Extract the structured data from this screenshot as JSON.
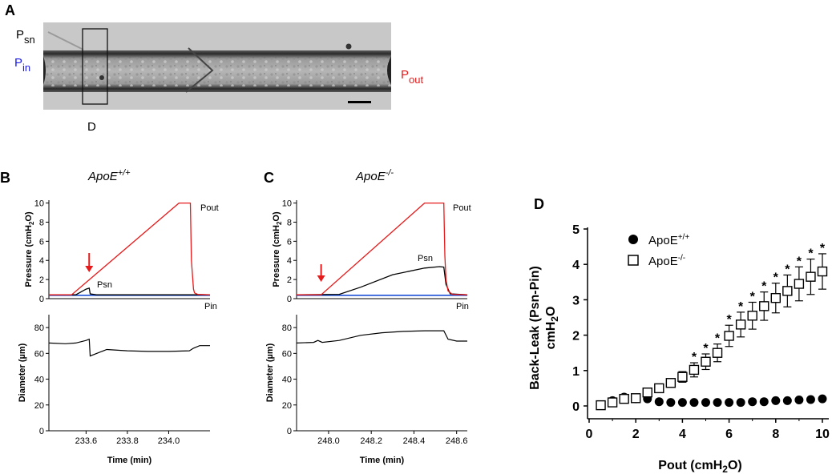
{
  "panel_labels": {
    "a": "A",
    "b": "B",
    "c": "C",
    "d": "D"
  },
  "micrograph": {
    "psn_main": "P",
    "psn_sub": "sn",
    "pin_main": "P",
    "pin_sub": "in",
    "pout_main": "P",
    "pout_sub": "out",
    "d_label": "D",
    "colors": {
      "psn": "#000000",
      "pin": "#1a1ae6",
      "pout": "#e61a1a"
    }
  },
  "traces": {
    "pressure_ylabel": "Pressure (cmH",
    "pressure_ylabel_sub": "2",
    "pressure_ylabel_end": "O)",
    "diameter_ylabel": "Diameter (µm)",
    "time_xlabel": "Time  (min)",
    "legend_pout": "Pout",
    "legend_psn": "Psn",
    "legend_pin": "Pin",
    "colors": {
      "pout": "#e61a1a",
      "psn": "#000000",
      "pin": "#1a4fd6",
      "arrow": "#e61a1a"
    }
  },
  "chart_data": [
    {
      "id": "B",
      "type": "line",
      "title_main": "ApoE",
      "title_sup": "+/+",
      "xlabel": "Time  (min)",
      "xlim": [
        233.42,
        234.2
      ],
      "xticks": [
        "233.6",
        "233.8",
        "234.0"
      ],
      "xtick_values": [
        233.6,
        233.8,
        234.0
      ],
      "pressure": {
        "ylim": [
          0,
          10.3
        ],
        "yticks": [
          "0",
          "2",
          "4",
          "6",
          "8",
          "10"
        ],
        "ytick_values": [
          0,
          2,
          4,
          6,
          8,
          10
        ],
        "series": [
          {
            "name": "Pout",
            "x": [
              233.42,
              233.53,
              234.05,
              234.105,
              234.11,
              234.115,
              234.12,
              234.125,
              234.14,
              234.2
            ],
            "y": [
              0.4,
              0.4,
              10.0,
              10.0,
              4.0,
              2.5,
              1.0,
              0.6,
              0.45,
              0.4
            ]
          },
          {
            "name": "Psn",
            "x": [
              233.42,
              233.55,
              233.6,
              233.615,
              233.62,
              233.65,
              234.2
            ],
            "y": [
              0.4,
              0.4,
              1.0,
              1.1,
              0.5,
              0.4,
              0.4
            ]
          },
          {
            "name": "Pin",
            "x": [
              233.42,
              233.6,
              233.8,
              234.0,
              234.2
            ],
            "y": [
              0.35,
              0.35,
              0.35,
              0.35,
              0.35
            ]
          }
        ],
        "arrow_x": 233.615
      },
      "diameter": {
        "ylim": [
          0,
          90
        ],
        "yticks": [
          "0",
          "20",
          "40",
          "60",
          "80"
        ],
        "ytick_values": [
          0,
          20,
          40,
          60,
          80
        ],
        "x": [
          233.42,
          233.5,
          233.55,
          233.6,
          233.615,
          233.62,
          233.7,
          233.8,
          233.9,
          234.0,
          234.1,
          234.12,
          234.15,
          234.2
        ],
        "y": [
          68,
          67.5,
          68,
          70,
          71,
          58,
          63,
          62,
          61.5,
          61.5,
          62,
          64,
          66,
          66
        ]
      }
    },
    {
      "id": "C",
      "type": "line",
      "title_main": "ApoE",
      "title_sup": "-/-",
      "xlabel": "Time  (min)",
      "xlim": [
        247.85,
        248.65
      ],
      "xticks": [
        "248.0",
        "248.2",
        "248.4",
        "248.6"
      ],
      "xtick_values": [
        248.0,
        248.2,
        248.4,
        248.6
      ],
      "pressure": {
        "ylim": [
          0,
          10.3
        ],
        "yticks": [
          "0",
          "2",
          "4",
          "6",
          "8",
          "10"
        ],
        "ytick_values": [
          0,
          2,
          4,
          6,
          8,
          10
        ],
        "series": [
          {
            "name": "Pout",
            "x": [
              247.85,
              247.965,
              248.45,
              248.54,
              248.545,
              248.55,
              248.56,
              248.58,
              248.65
            ],
            "y": [
              0.4,
              0.4,
              10.0,
              10.0,
              4.5,
              2.0,
              0.8,
              0.45,
              0.4
            ]
          },
          {
            "name": "Psn",
            "x": [
              247.85,
              248.05,
              248.15,
              248.3,
              248.45,
              248.52,
              248.54,
              248.55,
              248.57,
              248.65
            ],
            "y": [
              0.4,
              0.45,
              1.2,
              2.5,
              3.2,
              3.35,
              3.3,
              1.5,
              0.5,
              0.4
            ]
          },
          {
            "name": "Pin",
            "x": [
              247.85,
              248.1,
              248.4,
              248.65
            ],
            "y": [
              0.35,
              0.35,
              0.35,
              0.35
            ]
          }
        ],
        "arrow_x": 247.965
      },
      "diameter": {
        "ylim": [
          0,
          90
        ],
        "yticks": [
          "0",
          "20",
          "40",
          "60",
          "80"
        ],
        "ytick_values": [
          0,
          20,
          40,
          60,
          80
        ],
        "x": [
          247.85,
          247.93,
          247.95,
          247.97,
          248.05,
          248.15,
          248.25,
          248.35,
          248.45,
          248.54,
          248.56,
          248.6,
          248.65
        ],
        "y": [
          68,
          68.5,
          70,
          68.5,
          70,
          74,
          76,
          77,
          77.5,
          77.5,
          71,
          69.5,
          69.5
        ]
      }
    },
    {
      "id": "D",
      "type": "scatter",
      "xlabel": "Pout (cmH",
      "xlabel_sub": "2",
      "xlabel_end": "O)",
      "ylabel": "Back-Leak (Psn-Pin)",
      "ylabel2": "cmH",
      "ylabel2_sub": "2",
      "ylabel2_end": "O",
      "xlim": [
        0,
        10.3
      ],
      "ylim": [
        -0.35,
        5
      ],
      "xticks": [
        "0",
        "2",
        "4",
        "6",
        "8",
        "10"
      ],
      "yticks": [
        "0",
        "1",
        "2",
        "3",
        "4",
        "5"
      ],
      "legend_position": "top",
      "series": [
        {
          "name": "ApoE",
          "name_sup": "+/+",
          "marker": "filled-circle",
          "x": [
            0.5,
            1,
            1.5,
            2,
            2.5,
            3,
            3.5,
            4,
            4.5,
            5,
            5.5,
            6,
            6.5,
            7,
            7.5,
            8,
            8.5,
            9,
            9.5,
            10
          ],
          "y": [
            0.02,
            0.15,
            0.25,
            0.2,
            0.2,
            0.12,
            0.1,
            0.1,
            0.1,
            0.1,
            0.1,
            0.1,
            0.1,
            0.12,
            0.12,
            0.15,
            0.15,
            0.17,
            0.18,
            0.2
          ]
        },
        {
          "name": "ApoE",
          "name_sup": "-/-",
          "marker": "open-square",
          "x": [
            0.5,
            1,
            1.5,
            2,
            2.5,
            3,
            3.5,
            4,
            4.5,
            5,
            5.5,
            6,
            6.5,
            7,
            7.5,
            8,
            8.5,
            9,
            9.5,
            10
          ],
          "y": [
            0.02,
            0.1,
            0.2,
            0.22,
            0.38,
            0.5,
            0.65,
            0.82,
            1.02,
            1.25,
            1.5,
            1.98,
            2.3,
            2.55,
            2.82,
            3.05,
            3.25,
            3.45,
            3.65,
            3.8
          ],
          "err": [
            0.05,
            0.05,
            0.05,
            0.05,
            0.08,
            0.1,
            0.12,
            0.15,
            0.2,
            0.22,
            0.25,
            0.3,
            0.35,
            0.38,
            0.4,
            0.42,
            0.45,
            0.48,
            0.5,
            0.5
          ],
          "significance": [
            false,
            false,
            false,
            false,
            false,
            false,
            false,
            false,
            true,
            true,
            true,
            true,
            true,
            true,
            true,
            true,
            true,
            true,
            true,
            true
          ]
        }
      ],
      "significance_label": "*"
    }
  ]
}
